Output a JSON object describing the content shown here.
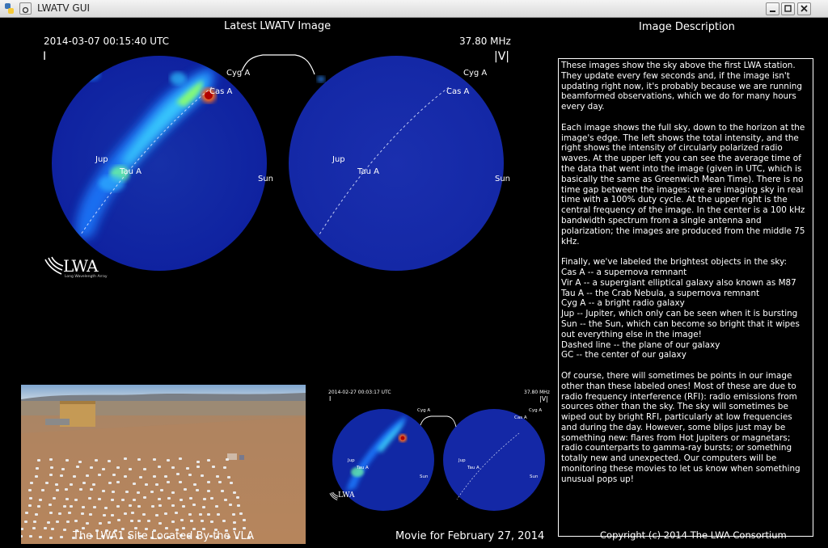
{
  "window": {
    "title": "LWATV GUI"
  },
  "main": {
    "heading": "Latest LWATV Image",
    "timestamp": "2014-03-07 00:15:40 UTC",
    "frequency": "37.80 MHz",
    "stokes_left": "I",
    "stokes_right": "|V|",
    "labels": {
      "cyg_a": "Cyg A",
      "cas_a": "Cas A",
      "jup": "Jup",
      "tau_a": "Tau A",
      "sun": "Sun"
    }
  },
  "logo": {
    "name": "LWA",
    "subtitle": "Long Wavelength Array"
  },
  "description": {
    "heading": "Image Description",
    "paragraphs": [
      [
        "These images show the sky above the first LWA station. They update every few seconds and, if the image isn't updating right now, it's probably because we are running beamformed observations, which we do for many hours every day."
      ],
      [
        "Each image shows the full sky, down to the horizon at the image's edge. The left shows the total intensity, and the right shows the intensity of circularly polarized radio waves. At the upper left you can see the average time of the data that went into the image (given in UTC, which is basically the same as Greenwich Mean Time). There is no time gap between the images: we are imaging sky in real time with a 100% duty cycle. At the upper right is the central frequency of the image. In the center is a 100 kHz bandwidth spectrum from a single antenna and polarization; the images are produced from the middle 75 kHz."
      ],
      [
        "Finally, we've labeled the brightest objects in the sky:",
        "Cas A -- a supernova remnant",
        "Vir A -- a supergiant elliptical galaxy also known as M87",
        "Tau A -- the Crab Nebula, a supernova remnant",
        "Cyg A -- a bright radio galaxy",
        "Jup -- Jupiter, which only can be seen when it is bursting",
        "Sun -- the Sun, which can become so bright that it wipes out everything else in the image!",
        "Dashed line -- the plane of our galaxy",
        "GC -- the center of our galaxy"
      ],
      [
        "Of course, there will sometimes be points in our image other than these labeled ones! Most of these are due to radio frequency interference (RFI): radio emissions from sources other than the sky. The sky will sometimes be wiped out by bright RFI, particularly at low frequencies and during the day. However, some blips just may be something new: flares from Hot Jupiters or magnetars; radio counterparts to gamma-ray bursts; or something totally new and unexpected. Our computers will be monitoring these movies to let us know when something unusual pops up!"
      ]
    ]
  },
  "site": {
    "caption": "The LWA1 Site Located By the VLA"
  },
  "movie": {
    "caption": "Movie for February 27, 2014",
    "timestamp": "2014-02-27 00:03:17 UTC",
    "frequency": "37.80 MHz",
    "stokes_left": "I",
    "stokes_right": "|V|"
  },
  "footer": {
    "copyright": "Copyright (c) 2014 The LWA Consortium"
  }
}
